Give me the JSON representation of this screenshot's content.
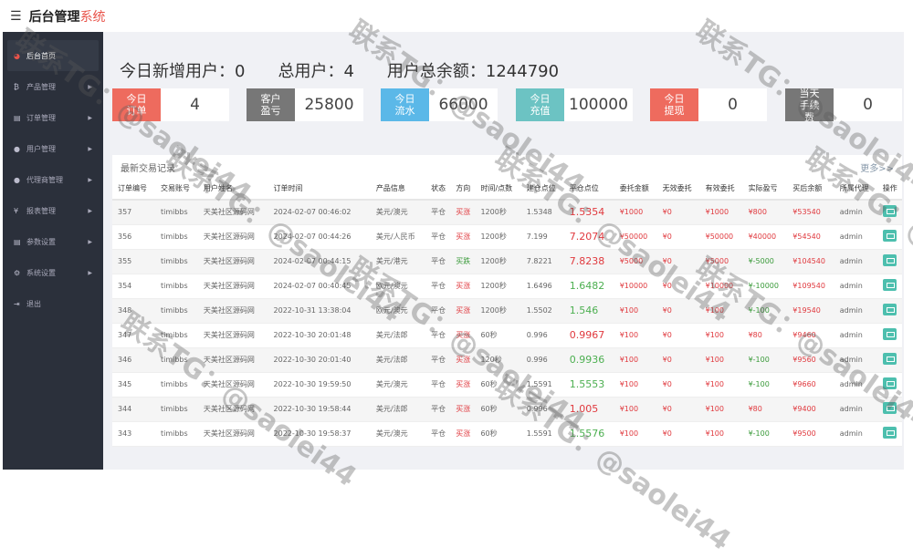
{
  "header": {
    "title": "后台管理",
    "title_accent": "系统"
  },
  "sidebar": {
    "items": [
      {
        "label": "后台首页",
        "icon": "dashboard-icon",
        "glyph": "◕",
        "arrow": false
      },
      {
        "label": "产品管理",
        "icon": "bitcoin-icon",
        "glyph": "₿",
        "arrow": true
      },
      {
        "label": "订单管理",
        "icon": "copy-icon",
        "glyph": "▤",
        "arrow": true
      },
      {
        "label": "用户管理",
        "icon": "user-icon",
        "glyph": "●",
        "arrow": true
      },
      {
        "label": "代理商管理",
        "icon": "users-icon",
        "glyph": "●",
        "arrow": true
      },
      {
        "label": "报表管理",
        "icon": "yen-icon",
        "glyph": "¥",
        "arrow": true
      },
      {
        "label": "参数设置",
        "icon": "copy-icon",
        "glyph": "▤",
        "arrow": true
      },
      {
        "label": "系统设置",
        "icon": "cogs-icon",
        "glyph": "⚙",
        "arrow": true
      },
      {
        "label": "退出",
        "icon": "sign-out-icon",
        "glyph": "⇥",
        "arrow": false
      }
    ]
  },
  "stats": {
    "new_users": "今日新增用户：0",
    "total_users": "总用户：4",
    "total_balance": "用户总余额：1244790"
  },
  "cards": [
    {
      "label": "今日订单",
      "value": "4",
      "color": "#ee6b5e"
    },
    {
      "label": "客户盈亏",
      "value": "25800",
      "color": "#777777"
    },
    {
      "label": "今日流水",
      "value": "66000",
      "color": "#5bb8e8"
    },
    {
      "label": "今日充值",
      "value": "100000",
      "color": "#6cc3c3"
    },
    {
      "label": "今日提现",
      "value": "0",
      "color": "#ee6b5e"
    },
    {
      "label": "当天手续费",
      "value": "0",
      "color": "#777777"
    }
  ],
  "panel": {
    "title": "最新交易记录",
    "more": "更多>>"
  },
  "table": {
    "headers": [
      "订单编号",
      "交易账号",
      "用户姓名",
      "订单时间",
      "产品信息",
      "状态",
      "方向",
      "时间/点数",
      "建仓点位",
      "平仓点位",
      "委托金额",
      "无效委托",
      "有效委托",
      "实际盈亏",
      "买后余额",
      "所属代理",
      "操作"
    ],
    "rows": [
      [
        "357",
        "timibbs",
        "天美社区源码网",
        "2024-02-07 00:46:02",
        "美元/澳元",
        "平仓",
        "买涨",
        "1200秒",
        "1.5348",
        "1.5354",
        "¥1000",
        "¥0",
        "¥1000",
        "¥800",
        "¥53540",
        "admin"
      ],
      [
        "356",
        "timibbs",
        "天美社区源码网",
        "2024-02-07 00:44:26",
        "美元/人民币",
        "平仓",
        "买涨",
        "1200秒",
        "7.199",
        "7.2074",
        "¥50000",
        "¥0",
        "¥50000",
        "¥40000",
        "¥54540",
        "admin"
      ],
      [
        "355",
        "timibbs",
        "天美社区源码网",
        "2024-02-07 00:44:15",
        "美元/港元",
        "平仓",
        "买跌",
        "1200秒",
        "7.8221",
        "7.8238",
        "¥5000",
        "¥0",
        "¥5000",
        "¥-5000",
        "¥104540",
        "admin"
      ],
      [
        "354",
        "timibbs",
        "天美社区源码网",
        "2024-02-07 00:40:45",
        "欧元/澳元",
        "平仓",
        "买涨",
        "1200秒",
        "1.6496",
        "1.6482",
        "¥10000",
        "¥0",
        "¥10000",
        "¥-10000",
        "¥109540",
        "admin"
      ],
      [
        "348",
        "timibbs",
        "天美社区源码网",
        "2022-10-31 13:38:04",
        "欧元/澳元",
        "平仓",
        "买涨",
        "1200秒",
        "1.5502",
        "1.546",
        "¥100",
        "¥0",
        "¥100",
        "¥-100",
        "¥19540",
        "admin"
      ],
      [
        "347",
        "timibbs",
        "天美社区源码网",
        "2022-10-30 20:01:48",
        "美元/法郎",
        "平仓",
        "买涨",
        "60秒",
        "0.996",
        "0.9967",
        "¥100",
        "¥0",
        "¥100",
        "¥80",
        "¥9460",
        "admin"
      ],
      [
        "346",
        "timibbs",
        "天美社区源码网",
        "2022-10-30 20:01:40",
        "美元/法郎",
        "平仓",
        "买涨",
        "120秒",
        "0.996",
        "0.9936",
        "¥100",
        "¥0",
        "¥100",
        "¥-100",
        "¥9560",
        "admin"
      ],
      [
        "345",
        "timibbs",
        "天美社区源码网",
        "2022-10-30 19:59:50",
        "美元/澳元",
        "平仓",
        "买涨",
        "60秒",
        "1.5591",
        "1.5553",
        "¥100",
        "¥0",
        "¥100",
        "¥-100",
        "¥9660",
        "admin"
      ],
      [
        "344",
        "timibbs",
        "天美社区源码网",
        "2022-10-30 19:58:44",
        "美元/法郎",
        "平仓",
        "买涨",
        "60秒",
        "0.996",
        "1.005",
        "¥100",
        "¥0",
        "¥100",
        "¥80",
        "¥9400",
        "admin"
      ],
      [
        "343",
        "timibbs",
        "天美社区源码网",
        "2022-10-30 19:58:37",
        "美元/澳元",
        "平仓",
        "买涨",
        "60秒",
        "1.5591",
        "1.5576",
        "¥100",
        "¥0",
        "¥100",
        "¥-100",
        "¥9500",
        "admin"
      ]
    ]
  },
  "watermark": "联系TG：@saolei44"
}
